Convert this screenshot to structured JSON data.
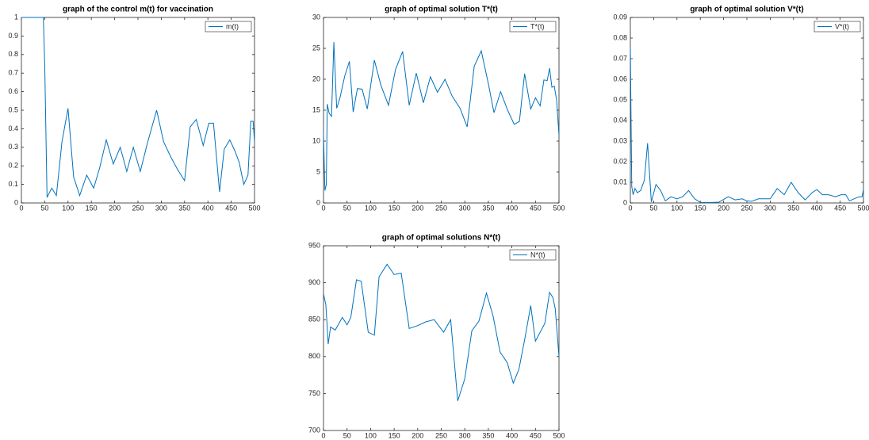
{
  "chart_data": [
    {
      "type": "line",
      "title": "graph of the control m(t) for vaccination",
      "x": [
        0,
        47,
        50,
        55,
        65,
        75,
        87,
        100,
        112,
        125,
        140,
        155,
        168,
        182,
        197,
        212,
        226,
        240,
        255,
        270,
        290,
        305,
        320,
        335,
        350,
        362,
        375,
        390,
        402,
        412,
        425,
        435,
        447,
        458,
        467,
        477,
        486,
        492,
        497,
        500
      ],
      "series": [
        {
          "name": "m(t)",
          "color": "#0072bd",
          "values": [
            1,
            1,
            0.75,
            0.03,
            0.08,
            0.04,
            0.33,
            0.51,
            0.14,
            0.04,
            0.15,
            0.08,
            0.19,
            0.34,
            0.21,
            0.3,
            0.17,
            0.3,
            0.17,
            0.32,
            0.5,
            0.33,
            0.25,
            0.18,
            0.12,
            0.41,
            0.45,
            0.31,
            0.43,
            0.43,
            0.06,
            0.29,
            0.34,
            0.28,
            0.22,
            0.1,
            0.15,
            0.44,
            0.44,
            0.33
          ]
        }
      ],
      "xlim": [
        0,
        500
      ],
      "xticks": [
        0,
        50,
        100,
        150,
        200,
        250,
        300,
        350,
        400,
        450,
        500
      ],
      "ylim": [
        0,
        1
      ],
      "yticks": [
        0,
        0.1,
        0.2,
        0.3,
        0.4,
        0.5,
        0.6,
        0.7,
        0.8,
        0.9,
        1
      ],
      "legend": "upper right"
    },
    {
      "type": "line",
      "title": "graph of optimal solution T*(t)",
      "x": [
        0,
        3,
        6,
        8,
        12,
        17,
        22,
        28,
        35,
        45,
        55,
        63,
        72,
        82,
        93,
        108,
        122,
        138,
        153,
        168,
        182,
        197,
        212,
        227,
        242,
        258,
        273,
        290,
        305,
        320,
        335,
        350,
        362,
        376,
        391,
        405,
        416,
        427,
        440,
        450,
        460,
        468,
        475,
        480,
        485,
        490,
        495,
        500
      ],
      "series": [
        {
          "name": "T*(t)",
          "color": "#0072bd",
          "values": [
            11,
            2,
            3,
            16,
            14.5,
            14,
            26,
            15.3,
            17,
            20.5,
            22.9,
            14.7,
            18.5,
            18.4,
            15.2,
            23.1,
            19,
            15.8,
            21.6,
            24.5,
            15.8,
            21,
            16.2,
            20.4,
            17.9,
            20,
            17.3,
            15.3,
            12.3,
            22.1,
            24.6,
            19.3,
            14.6,
            18,
            15,
            12.7,
            13.2,
            20.9,
            15.2,
            17,
            15.7,
            19.9,
            19.8,
            21.8,
            18.7,
            18.9,
            16.6,
            11
          ]
        }
      ],
      "xlim": [
        0,
        500
      ],
      "xticks": [
        0,
        50,
        100,
        150,
        200,
        250,
        300,
        350,
        400,
        450,
        500
      ],
      "ylim": [
        0,
        30
      ],
      "yticks": [
        0,
        5,
        10,
        15,
        20,
        25,
        30
      ],
      "legend": "upper right"
    },
    {
      "type": "line",
      "title": "graph of optimal solution V*(t)",
      "x": [
        0,
        3,
        6,
        10,
        15,
        22,
        30,
        37,
        45,
        55,
        65,
        75,
        87,
        100,
        112,
        125,
        138,
        150,
        170,
        190,
        210,
        225,
        240,
        250,
        260,
        275,
        300,
        315,
        330,
        345,
        360,
        375,
        390,
        400,
        412,
        425,
        440,
        452,
        462,
        470,
        480,
        490,
        497,
        500
      ],
      "series": [
        {
          "name": "V*(t)",
          "color": "#0072bd",
          "values": [
            0.075,
            0.008,
            0.004,
            0.007,
            0.005,
            0.006,
            0.011,
            0.029,
            0.0005,
            0.009,
            0.006,
            0.001,
            0.003,
            0.002,
            0.003,
            0.006,
            0.002,
            0.0003,
            0.0002,
            0.0004,
            0.003,
            0.0015,
            0.002,
            0.001,
            0.0008,
            0.002,
            0.002,
            0.007,
            0.004,
            0.01,
            0.005,
            0.0015,
            0.005,
            0.0065,
            0.004,
            0.004,
            0.003,
            0.004,
            0.004,
            0.001,
            0.002,
            0.003,
            0.003,
            0.0065
          ]
        }
      ],
      "xlim": [
        0,
        500
      ],
      "xticks": [
        0,
        50,
        100,
        150,
        200,
        250,
        300,
        350,
        400,
        450,
        500
      ],
      "ylim": [
        0,
        0.09
      ],
      "yticks": [
        0,
        0.01,
        0.02,
        0.03,
        0.04,
        0.05,
        0.06,
        0.07,
        0.08,
        0.09
      ],
      "legend": "upper right"
    },
    {
      "type": "line",
      "title": "graph of optimal solutions N*(t)",
      "x": [
        0,
        5,
        10,
        15,
        25,
        40,
        50,
        58,
        70,
        80,
        95,
        108,
        118,
        135,
        150,
        165,
        182,
        200,
        217,
        235,
        255,
        270,
        285,
        300,
        315,
        330,
        346,
        360,
        375,
        390,
        403,
        415,
        428,
        440,
        450,
        470,
        480,
        487,
        492,
        500
      ],
      "series": [
        {
          "name": "N*(t)",
          "color": "#0072bd",
          "values": [
            885,
            870,
            817,
            840,
            836,
            853,
            843,
            853,
            904,
            902,
            833,
            829,
            908,
            925,
            911,
            913,
            838,
            842,
            847,
            850,
            833,
            850,
            740,
            770,
            835,
            848,
            886,
            855,
            806,
            792,
            764,
            783,
            826,
            869,
            821,
            845,
            887,
            880,
            865,
            800
          ]
        }
      ],
      "xlim": [
        0,
        500
      ],
      "xticks": [
        0,
        50,
        100,
        150,
        200,
        250,
        300,
        350,
        400,
        450,
        500
      ],
      "ylim": [
        700,
        950
      ],
      "yticks": [
        700,
        750,
        800,
        850,
        900,
        950
      ],
      "legend": "upper right"
    }
  ]
}
